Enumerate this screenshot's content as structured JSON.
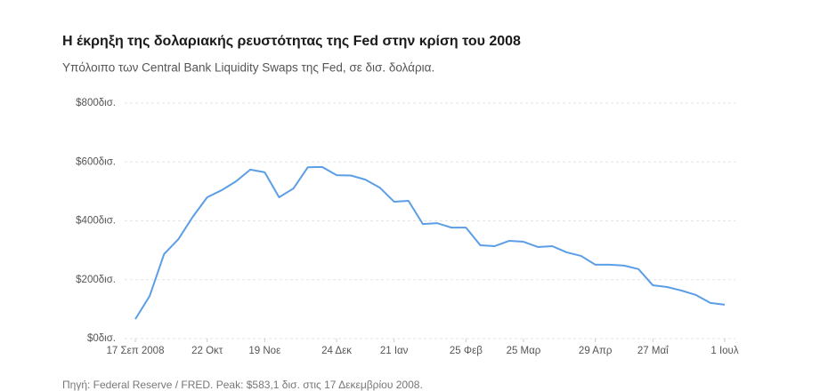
{
  "chart_data": {
    "type": "line",
    "title": "Η έκρηξη της δολαριακής ρευστότητας της Fed στην κρίση του 2008",
    "subtitle": "Υπόλοιπο των Central Bank Liquidity Swaps της Fed, σε δισ. δολάρια.",
    "source": "Πηγή: Federal Reserve / FRED. Peak: $583,1 δισ. στις 17 Δεκεμβρίου 2008.",
    "x": [
      "2008-09-17",
      "2008-09-24",
      "2008-10-01",
      "2008-10-08",
      "2008-10-15",
      "2008-10-22",
      "2008-10-29",
      "2008-11-05",
      "2008-11-12",
      "2008-11-19",
      "2008-11-26",
      "2008-12-03",
      "2008-12-10",
      "2008-12-17",
      "2008-12-24",
      "2008-12-31",
      "2009-01-07",
      "2009-01-14",
      "2009-01-21",
      "2009-01-28",
      "2009-02-04",
      "2009-02-11",
      "2009-02-18",
      "2009-02-25",
      "2009-03-04",
      "2009-03-11",
      "2009-03-18",
      "2009-03-25",
      "2009-04-01",
      "2009-04-08",
      "2009-04-15",
      "2009-04-22",
      "2009-04-29",
      "2009-05-06",
      "2009-05-13",
      "2009-05-20",
      "2009-05-27",
      "2009-06-03",
      "2009-06-10",
      "2009-06-17",
      "2009-06-24",
      "2009-07-01"
    ],
    "series": [
      {
        "name": "Central Bank Liquidity Swaps",
        "color": "#5b9ee6",
        "values": [
          66,
          145,
          287,
          338,
          414,
          480,
          504,
          534,
          574,
          565,
          480,
          510,
          582,
          583.1,
          555,
          554,
          540,
          513,
          465,
          468,
          389,
          392,
          377,
          377,
          317,
          314,
          332,
          329,
          311,
          314,
          293,
          281,
          251,
          251,
          248,
          236,
          181,
          175,
          163,
          148,
          121,
          115
        ]
      }
    ],
    "xlim": [
      "2008-09-17",
      "2009-07-01"
    ],
    "xticks": [
      {
        "value": "2008-09-17",
        "label": "17 Σεπ 2008"
      },
      {
        "value": "2008-10-22",
        "label": "22 Οκτ"
      },
      {
        "value": "2008-11-19",
        "label": "19 Νοε"
      },
      {
        "value": "2008-12-24",
        "label": "24 Δεκ"
      },
      {
        "value": "2009-01-21",
        "label": "21 Ιαν"
      },
      {
        "value": "2009-02-25",
        "label": "25 Φεβ"
      },
      {
        "value": "2009-03-25",
        "label": "25 Μαρ"
      },
      {
        "value": "2009-04-29",
        "label": "29 Απρ"
      },
      {
        "value": "2009-05-27",
        "label": "27 Μαΐ"
      },
      {
        "value": "2009-07-01",
        "label": "1 Ιουλ"
      }
    ],
    "ylim": [
      0,
      800
    ],
    "yticks": [
      {
        "value": 0,
        "label": "$0δισ."
      },
      {
        "value": 200,
        "label": "$200δισ."
      },
      {
        "value": 400,
        "label": "$400δισ."
      },
      {
        "value": 600,
        "label": "$600δισ."
      },
      {
        "value": 800,
        "label": "$800δισ."
      }
    ],
    "grid": true
  }
}
